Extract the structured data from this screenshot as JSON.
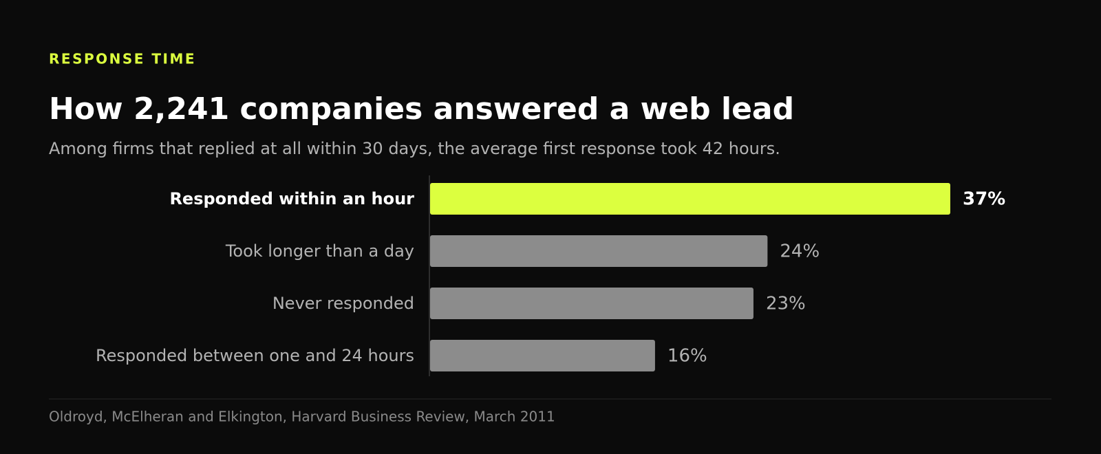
{
  "chart_data": {
    "type": "bar",
    "orientation": "horizontal",
    "eyebrow": "RESPONSE TIME",
    "title": "How 2,241 companies answered a web lead",
    "subtitle": "Among firms that replied at all within 30 days, the average first response took 42 hours.",
    "categories": [
      "Responded within an hour",
      "Took longer than a day",
      "Never responded",
      "Responded between one and 24 hours"
    ],
    "values": [
      37,
      24,
      23,
      16
    ],
    "value_labels": [
      "37%",
      "24%",
      "23%",
      "16%"
    ],
    "color": "#8c8c8c",
    "colors": [
      "#dcff3f",
      "#8c8c8c",
      "#8c8c8c",
      "#8c8c8c"
    ],
    "source": "Oldroyd, McElheran and Elkington, Harvard Business Review, March 2011"
  }
}
